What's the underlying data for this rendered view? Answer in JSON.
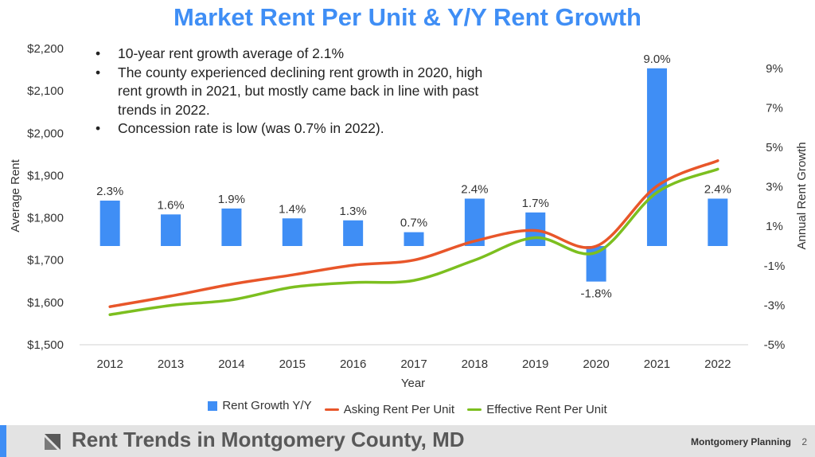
{
  "title": "Market Rent Per Unit & Y/Y Rent Growth",
  "bullets": [
    "10-year rent growth average of 2.1%",
    "The county experienced declining rent growth in 2020, high rent growth in 2021, but mostly came back in line with past trends in 2022.",
    "Concession rate is low (was 0.7% in 2022)."
  ],
  "footer": {
    "title": "Rent Trends in Montgomery County, MD",
    "brand": "Montgomery Planning",
    "page": "2"
  },
  "colors": {
    "title": "#3f8ef5",
    "bar": "#3f8ef5",
    "asking": "#e8562a",
    "effective": "#7cbf1f",
    "footer_bg": "#e3e3e3"
  },
  "chart_data": {
    "type": "bar",
    "xlabel": "Year",
    "ylabel": "Average Rent",
    "y2label": "Annual Rent Growth",
    "categories": [
      "2012",
      "2013",
      "2014",
      "2015",
      "2016",
      "2017",
      "2018",
      "2019",
      "2020",
      "2021",
      "2022"
    ],
    "ylim": [
      1500,
      2200
    ],
    "yticks": [
      "$1,500",
      "$1,600",
      "$1,700",
      "$1,800",
      "$1,900",
      "$2,000",
      "$2,100",
      "$2,200"
    ],
    "y2lim": [
      -5,
      10
    ],
    "y2ticks": [
      "-5%",
      "-3%",
      "-1%",
      "1%",
      "3%",
      "5%",
      "7%",
      "9%"
    ],
    "series": [
      {
        "name": "Rent Growth Y/Y",
        "type": "bar",
        "axis": "right",
        "values": [
          2.3,
          1.6,
          1.9,
          1.4,
          1.3,
          0.7,
          2.4,
          1.7,
          -1.8,
          9.0,
          2.4
        ],
        "labels": [
          "2.3%",
          "1.6%",
          "1.9%",
          "1.4%",
          "1.3%",
          "0.7%",
          "2.4%",
          "1.7%",
          "-1.8%",
          "9.0%",
          "2.4%"
        ]
      },
      {
        "name": "Asking Rent Per Unit",
        "type": "line",
        "axis": "left",
        "values": [
          1590,
          1615,
          1643,
          1665,
          1688,
          1700,
          1745,
          1770,
          1733,
          1875,
          1935
        ]
      },
      {
        "name": "Effective Rent Per Unit",
        "type": "line",
        "axis": "left",
        "values": [
          1571,
          1593,
          1606,
          1636,
          1647,
          1652,
          1700,
          1753,
          1718,
          1860,
          1915
        ]
      }
    ],
    "legend_position": "bottom",
    "grid": false
  }
}
